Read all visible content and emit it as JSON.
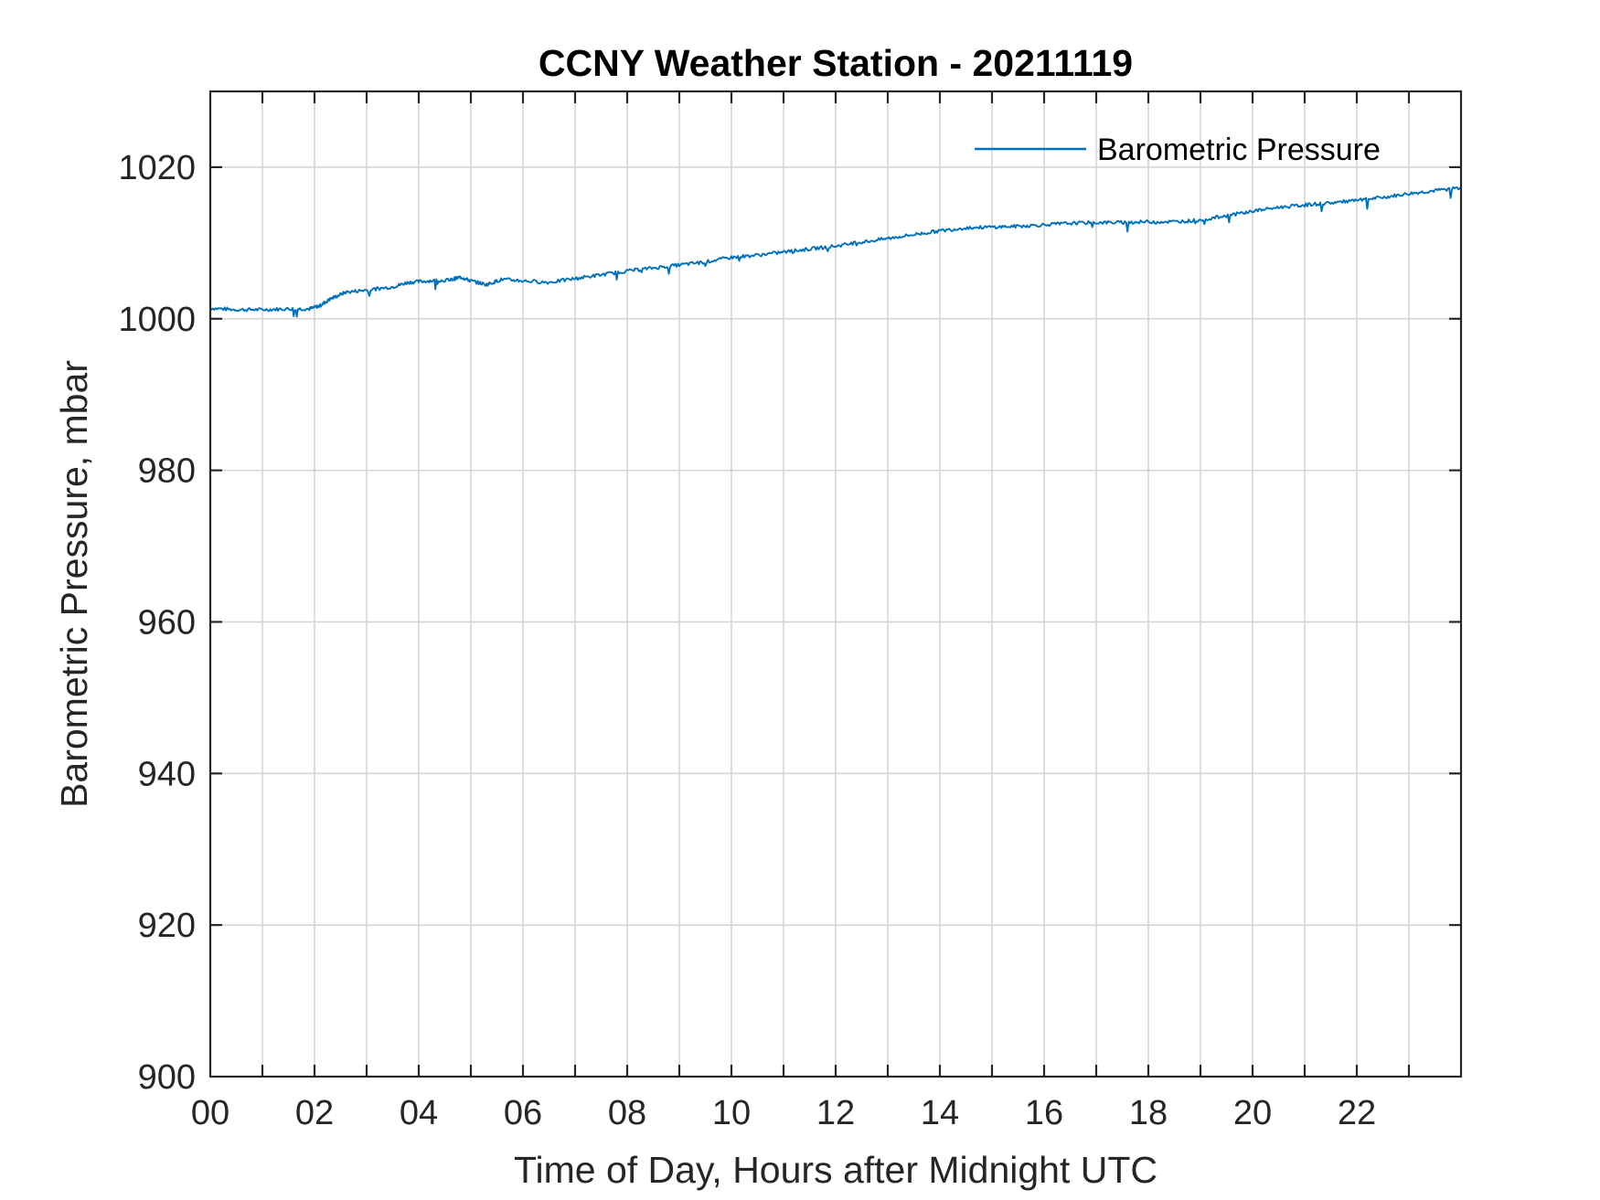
{
  "chart_data": {
    "type": "line",
    "title": "CCNY Weather Station - 20211119",
    "xlabel": "Time of Day, Hours after Midnight UTC",
    "ylabel": "Barometric Pressure, mbar",
    "xlim": [
      0,
      24
    ],
    "ylim": [
      900,
      1030
    ],
    "xticks": [
      0,
      2,
      4,
      6,
      8,
      10,
      12,
      14,
      16,
      18,
      20,
      22
    ],
    "xtick_labels": [
      "00",
      "02",
      "04",
      "06",
      "08",
      "10",
      "12",
      "14",
      "16",
      "18",
      "20",
      "22"
    ],
    "yticks": [
      900,
      920,
      940,
      960,
      980,
      1000,
      1020
    ],
    "ytick_labels": [
      "900",
      "920",
      "940",
      "960",
      "980",
      "1000",
      "1020"
    ],
    "grid": true,
    "grid_minor_x_step": 1,
    "legend_position": "top-right",
    "series": [
      {
        "name": "Barometric Pressure",
        "color": "#0072BD",
        "x": [
          0,
          0.5,
          1,
          1.5,
          1.9,
          2.1,
          2.3,
          2.6,
          3.0,
          3.5,
          3.8,
          4.2,
          4.6,
          4.8,
          5.0,
          5.3,
          5.6,
          6.0,
          6.5,
          7.0,
          7.5,
          8.0,
          8.5,
          9.0,
          9.5,
          10.0,
          10.5,
          11.0,
          11.5,
          12.0,
          12.5,
          13.0,
          13.5,
          14.0,
          14.5,
          15.0,
          15.5,
          16.0,
          16.5,
          17.0,
          17.5,
          18.0,
          18.5,
          19.0,
          19.5,
          20.0,
          20.5,
          21.0,
          21.5,
          22.0,
          22.5,
          23.0,
          23.5,
          24.0
        ],
        "values": [
          1001.4,
          1001.2,
          1001.2,
          1001.3,
          1001.3,
          1001.7,
          1002.6,
          1003.5,
          1003.8,
          1004.2,
          1004.8,
          1005.0,
          1005.1,
          1005.5,
          1005.0,
          1004.5,
          1005.2,
          1005.0,
          1004.8,
          1005.3,
          1005.8,
          1006.3,
          1006.7,
          1007.1,
          1007.5,
          1008.1,
          1008.4,
          1008.8,
          1009.2,
          1009.6,
          1010.1,
          1010.6,
          1011.1,
          1011.6,
          1012.0,
          1012.1,
          1012.2,
          1012.4,
          1012.6,
          1012.7,
          1012.7,
          1012.8,
          1012.8,
          1013.0,
          1013.6,
          1014.2,
          1014.7,
          1015.0,
          1015.3,
          1015.6,
          1016.0,
          1016.5,
          1016.9,
          1017.3
        ]
      }
    ]
  }
}
